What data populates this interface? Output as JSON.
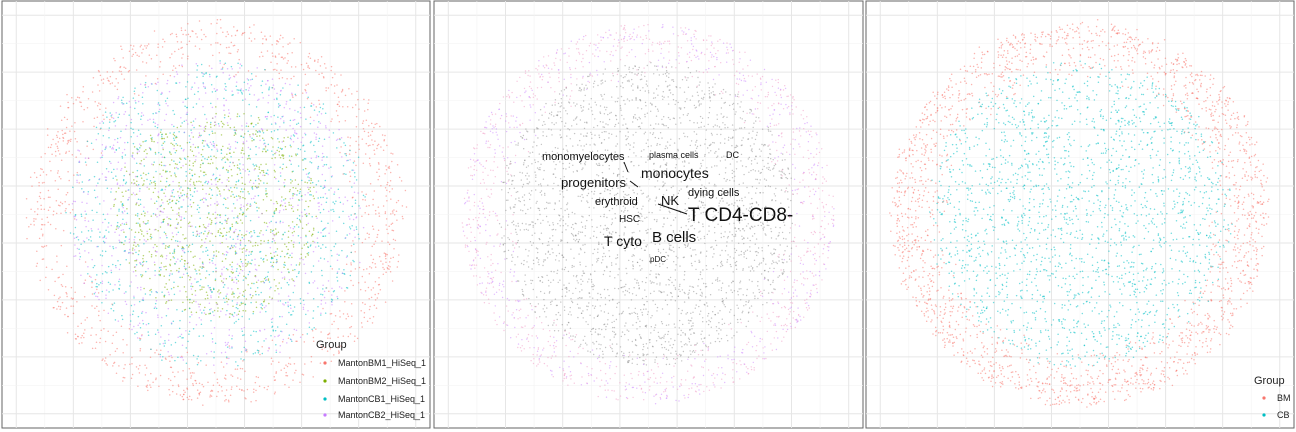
{
  "chart_data": [
    {
      "type": "scatter",
      "panel": "left",
      "title": "",
      "xlabel": "",
      "ylabel": "",
      "grid": true,
      "legend": {
        "title": "Group",
        "placement": "bottom-right",
        "entries": [
          {
            "name": "MantonBM1_HiSeq_1",
            "color": "#f8766d"
          },
          {
            "name": "MantonBM2_HiSeq_1",
            "color": "#7cae00"
          },
          {
            "name": "MantonCB1_HiSeq_1",
            "color": "#00bfc4"
          },
          {
            "name": "MantonCB2_HiSeq_1",
            "color": "#c77cff"
          }
        ]
      },
      "series": [
        {
          "name": "MantonBM1_HiSeq_1",
          "distribution": "outer-ring",
          "approx_points": 1100
        },
        {
          "name": "MantonBM2_HiSeq_1",
          "distribution": "center",
          "approx_points": 900
        },
        {
          "name": "MantonCB1_HiSeq_1",
          "distribution": "middle",
          "approx_points": 1100
        },
        {
          "name": "MantonCB2_HiSeq_1",
          "distribution": "middle",
          "approx_points": 900
        }
      ]
    },
    {
      "type": "scatter",
      "panel": "middle",
      "title": "",
      "xlabel": "",
      "ylabel": "",
      "grid": true,
      "legend": null,
      "point_colors": {
        "main": "#7a7a7a",
        "edge_pink": "#f2a3c9",
        "edge_purple": "#c77cff"
      },
      "cluster_labels": [
        {
          "text": "monomyelocytes",
          "size": 11
        },
        {
          "text": "plasma cells",
          "size": 9
        },
        {
          "text": "DC",
          "size": 9
        },
        {
          "text": "progenitors",
          "size": 13
        },
        {
          "text": "monocytes",
          "size": 14
        },
        {
          "text": "dying cells",
          "size": 11
        },
        {
          "text": "erythroid",
          "size": 11
        },
        {
          "text": "NK",
          "size": 13
        },
        {
          "text": "T CD4-CD8-",
          "size": 19
        },
        {
          "text": "HSC",
          "size": 10
        },
        {
          "text": "T cyto",
          "size": 14
        },
        {
          "text": "B cells",
          "size": 15
        },
        {
          "text": "pDC",
          "size": 8
        }
      ]
    },
    {
      "type": "scatter",
      "panel": "right",
      "title": "",
      "xlabel": "",
      "ylabel": "",
      "grid": true,
      "legend": {
        "title": "Group",
        "placement": "bottom-right",
        "entries": [
          {
            "name": "BM",
            "color": "#f8766d"
          },
          {
            "name": "CB",
            "color": "#00bfc4"
          }
        ]
      },
      "series": [
        {
          "name": "BM",
          "distribution": "outer-ring",
          "approx_points": 2000
        },
        {
          "name": "CB",
          "distribution": "middle",
          "approx_points": 2000
        }
      ]
    }
  ]
}
